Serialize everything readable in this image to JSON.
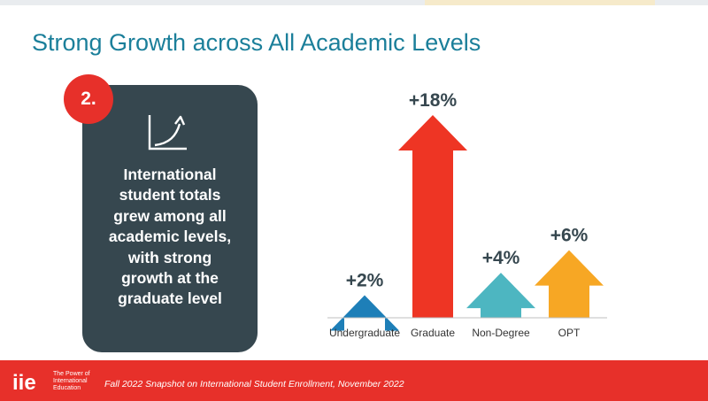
{
  "slide": {
    "title": "Strong Growth across All Academic Levels",
    "badge": "2.",
    "card_icon": "growth-curve-icon",
    "card_lines": [
      "International",
      "student totals",
      "grew among all",
      "academic levels,",
      "with strong",
      "growth at the",
      "graduate level"
    ]
  },
  "footer": {
    "logo_text": "iie",
    "tagline": "The Power of International Education",
    "text": "Fall 2022 Snapshot on International Student Enrollment, November 2022"
  },
  "colors": {
    "title": "#1b7f9a",
    "card": "#36474f",
    "accent_red": "#e7302a",
    "undergraduate": "#1e7fb8",
    "graduate": "#ee3524",
    "non_degree": "#4db6c1",
    "opt": "#f7a724"
  },
  "chart_data": {
    "type": "bar",
    "categories": [
      "Undergraduate",
      "Graduate",
      "Non-Degree",
      "OPT"
    ],
    "values": [
      2,
      18,
      4,
      6
    ],
    "data_labels": [
      "+2%",
      "+18%",
      "+4%",
      "+6%"
    ],
    "bar_shape": "up-arrow",
    "grid": false,
    "legend": "none"
  }
}
